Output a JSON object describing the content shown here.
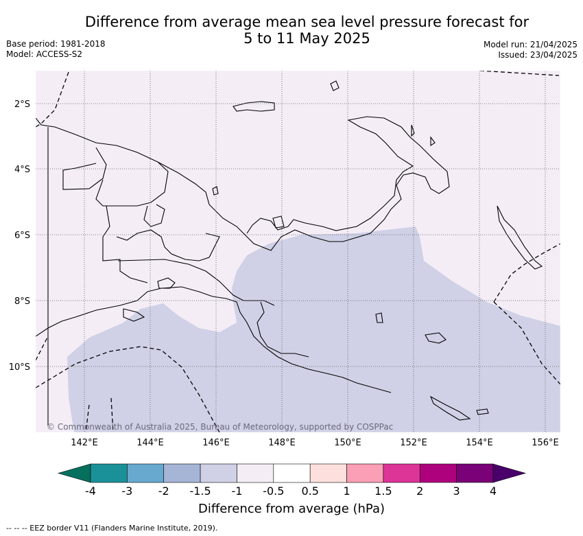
{
  "header": {
    "title_line1": "Difference from average mean sea level pressure forecast for",
    "title_line2": "5 to 11 May 2025",
    "base_period": "Base period: 1981-2018",
    "model": "Model: ACCESS-S2",
    "model_run": "Model run: 21/04/2025",
    "issued": "Issued: 23/04/2025"
  },
  "map": {
    "lat_labels": [
      "2°S",
      "4°S",
      "6°S",
      "8°S",
      "10°S"
    ],
    "lon_labels": [
      "142°E",
      "144°E",
      "146°E",
      "148°E",
      "150°E",
      "152°E",
      "154°E",
      "156°E"
    ],
    "copyright": "© Commonwealth of Australia 2025, Bureau of Meteorology, supported by COSPPac",
    "region_anomaly": [
      {
        "range": "-1.5 to -1",
        "color": "#d0d1e6",
        "area": "south of Papua New Guinea mainland"
      },
      {
        "range": "-1 to -0.5",
        "color": "#f4edf6",
        "area": "north and east of domain"
      }
    ]
  },
  "colorbar": {
    "title": "Difference from average (hPa)",
    "ticks": [
      "-4",
      "-3",
      "-2",
      "-1.5",
      "-1",
      "-0.5",
      "0.5",
      "1",
      "1.5",
      "2",
      "3",
      "4"
    ],
    "colors": [
      "#06705f",
      "#1a9198",
      "#67a9cf",
      "#a6b5d6",
      "#d0d1e6",
      "#f4edf6",
      "#ffffff",
      "#fde0dd",
      "#fa9fb5",
      "#dd3497",
      "#ae017e",
      "#7a0177",
      "#49006a"
    ]
  },
  "footnote": "-- -- -- EEZ border V11 (Flanders Marine Institute, 2019)."
}
